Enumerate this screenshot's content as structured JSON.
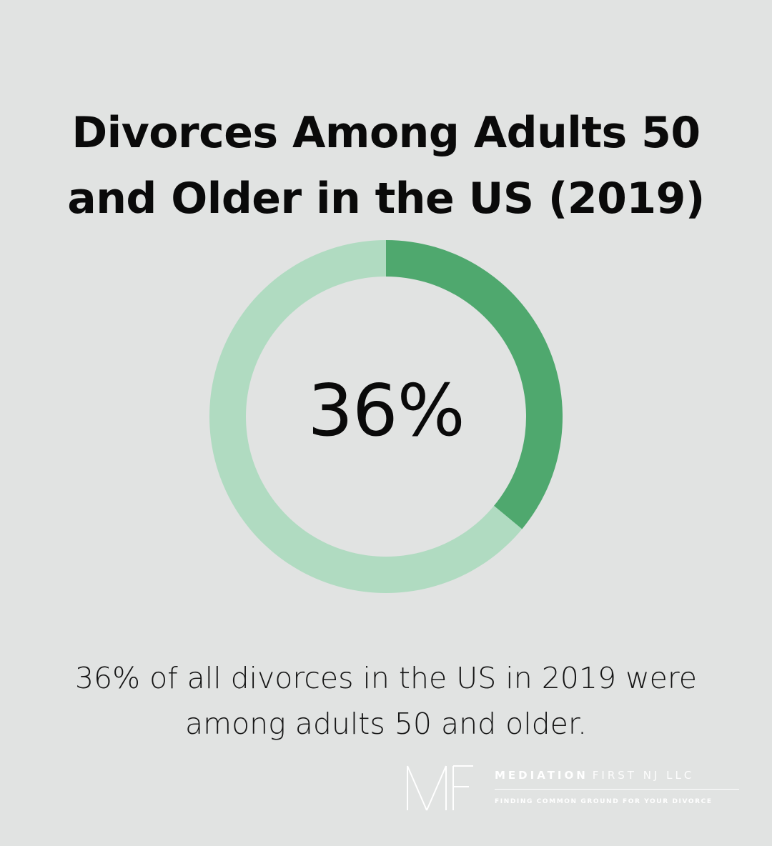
{
  "title": {
    "line1": "Divorces Among Adults 50",
    "line2": "and Older in the US (2019)"
  },
  "chart_data": {
    "type": "pie",
    "variant": "donut",
    "center_label": "36%",
    "slices": [
      {
        "value": 36,
        "color": "#4fa86e"
      },
      {
        "value": 64,
        "color": "#b0dbc1"
      }
    ]
  },
  "caption": {
    "line1": "36% of all divorces in the US in 2019 were",
    "line2": "among adults 50 and older."
  },
  "logo": {
    "mark": "MF",
    "name_strong": "MEDIATION",
    "name_light": "FIRST NJ LLC",
    "tagline": "FINDING COMMON GROUND FOR YOUR DIVORCE"
  },
  "colors": {
    "background": "#e1e3e2",
    "highlight": "#4fa86e",
    "remainder": "#b0dbc1"
  }
}
